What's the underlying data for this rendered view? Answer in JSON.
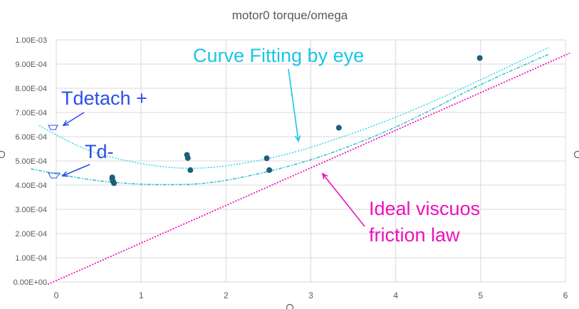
{
  "chart_data": {
    "type": "scatter",
    "title": "motor0 torque/omega",
    "xlabel": "",
    "ylabel": "",
    "xlim": [
      0,
      6
    ],
    "ylim": [
      0,
      0.001
    ],
    "grid": true,
    "x_ticks": [
      "0",
      "1",
      "2",
      "3",
      "4",
      "5",
      "6"
    ],
    "y_ticks": [
      "0.00E+00",
      "1.00E-04",
      "2.00E-04",
      "3.00E-04",
      "4.00E-04",
      "5.00E-04",
      "6.00E-04",
      "7.00E-04",
      "8.00E-04",
      "9.00E-04",
      "1.00E-03"
    ],
    "points": [
      {
        "x": 0.66,
        "y": 0.000432
      },
      {
        "x": 0.66,
        "y": 0.000425
      },
      {
        "x": 0.67,
        "y": 0.000415
      },
      {
        "x": 0.68,
        "y": 0.000408
      },
      {
        "x": 1.54,
        "y": 0.000525
      },
      {
        "x": 1.55,
        "y": 0.000512
      },
      {
        "x": 1.58,
        "y": 0.000462
      },
      {
        "x": 2.48,
        "y": 0.000511
      },
      {
        "x": 2.51,
        "y": 0.000462
      },
      {
        "x": 3.33,
        "y": 0.000637
      },
      {
        "x": 4.99,
        "y": 0.000925
      }
    ],
    "fit_upper": {
      "x": [
        -0.2,
        0.5,
        1.5,
        2.5,
        3.5,
        4.5,
        5.8
      ],
      "y": [
        0.000645,
        0.00053,
        0.00047,
        0.00051,
        0.000615,
        0.000755,
        0.000968
      ]
    },
    "fit_lower": {
      "x": [
        -0.3,
        0.5,
        1.3,
        2.0,
        3.0,
        4.0,
        5.0,
        5.8
      ],
      "y": [
        0.000467,
        0.000418,
        0.000402,
        0.00042,
        0.000505,
        0.00064,
        0.000815,
        0.00094
      ]
    },
    "ideal_line": {
      "x": [
        -0.1,
        6.05
      ],
      "y": [
        -1e-05,
        0.000945
      ]
    },
    "colors": {
      "points": "#1d5f7c",
      "fit_upper": "#3ad6e6",
      "fit_lower": "#2ec0cf",
      "ideal_line": "#ee11bb",
      "annot_blue": "#2b4fe6",
      "annot_cyan": "#19c6e6",
      "grid": "#d9d9d9"
    },
    "annotations": {
      "tdetach_plus": "Tdetach +",
      "td_minus": "Td-",
      "curve_fitting": "Curve Fitting by eye",
      "ideal_line1": "Ideal viscuos",
      "ideal_line2": "friction law"
    }
  }
}
